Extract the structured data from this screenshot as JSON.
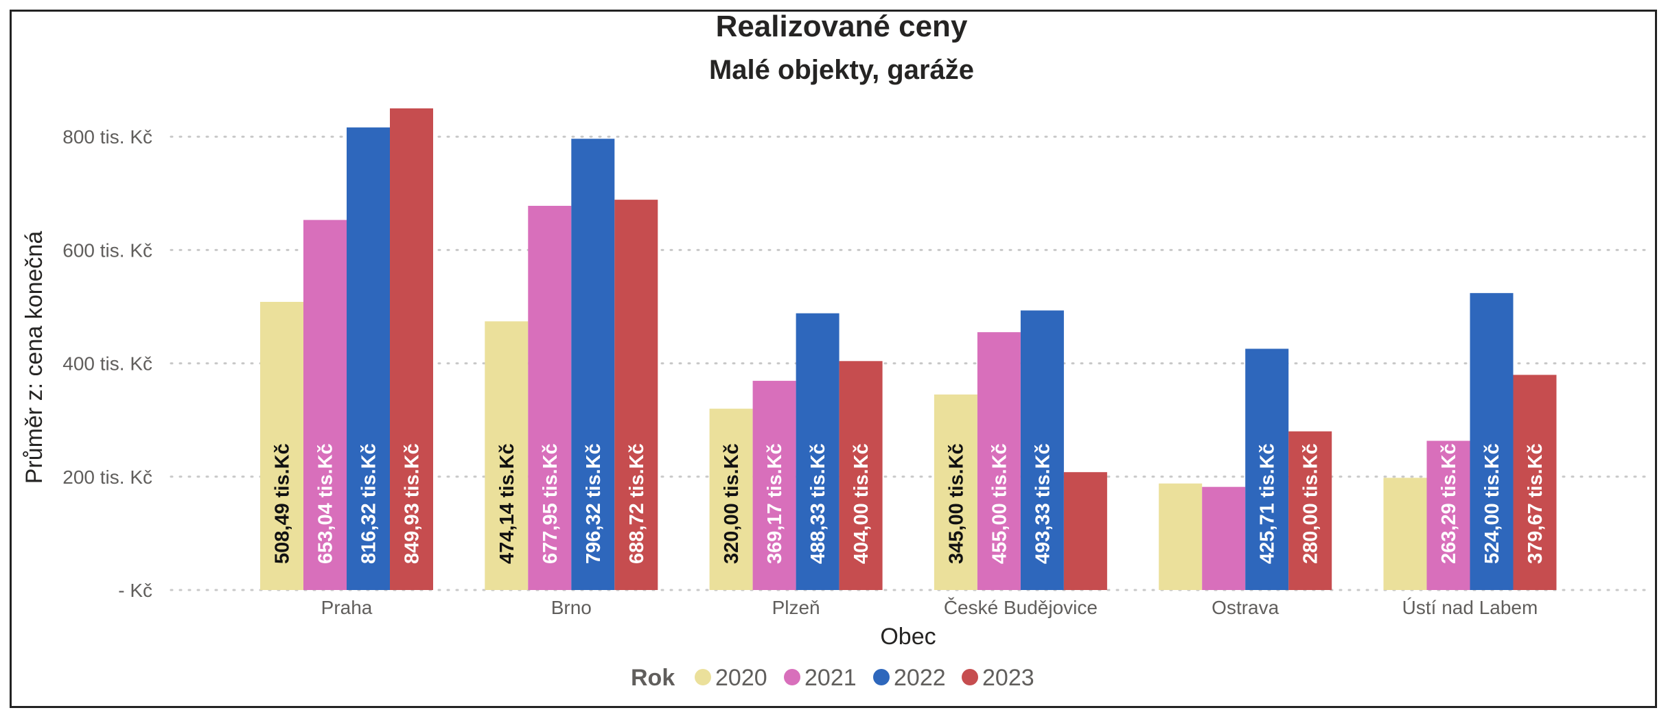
{
  "chart_data": {
    "type": "bar",
    "title": "Realizované ceny",
    "subtitle": "Malé objekty, garáže",
    "xlabel": "Obec",
    "ylabel": "Průměr z: cena konečná",
    "ylim": [
      0,
      850
    ],
    "yticks": [
      {
        "value": 0,
        "label": "- Kč"
      },
      {
        "value": 200,
        "label": "200 tis. Kč"
      },
      {
        "value": 400,
        "label": "400 tis. Kč"
      },
      {
        "value": 600,
        "label": "600 tis. Kč"
      },
      {
        "value": 800,
        "label": "800 tis. Kč"
      }
    ],
    "grid": "horizontal dotted",
    "legend": {
      "title": "Rok",
      "position": "bottom-center"
    },
    "categories": [
      "Praha",
      "Brno",
      "Plzeň",
      "České Budějovice",
      "Ostrava",
      "Ústí nad Labem"
    ],
    "series": [
      {
        "name": "2020",
        "color": "#ebe09b",
        "label_color": "#111111",
        "values": [
          508.49,
          474.14,
          320.0,
          345.0,
          188,
          198
        ],
        "labels": [
          "508,49 tis.Kč",
          "474,14 tis.Kč",
          "320,00 tis.Kč",
          "345,00 tis.Kč",
          "",
          ""
        ]
      },
      {
        "name": "2021",
        "color": "#d86fbb",
        "label_color": "#ffffff",
        "values": [
          653.04,
          677.95,
          369.17,
          455.0,
          182,
          263.29
        ],
        "labels": [
          "653,04 tis.Kč",
          "677,95 tis.Kč",
          "369,17 tis.Kč",
          "455,00 tis.Kč",
          "",
          "263,29 tis.Kč"
        ]
      },
      {
        "name": "2022",
        "color": "#2e67bc",
        "label_color": "#ffffff",
        "values": [
          816.32,
          796.32,
          488.33,
          493.33,
          425.71,
          524.0
        ],
        "labels": [
          "816,32 tis.Kč",
          "796,32 tis.Kč",
          "488,33 tis.Kč",
          "493,33 tis.Kč",
          "425,71 tis.Kč",
          "524,00 tis.Kč"
        ]
      },
      {
        "name": "2023",
        "color": "#c64d4f",
        "label_color": "#ffffff",
        "values": [
          849.93,
          688.72,
          404.0,
          208,
          280.0,
          379.67
        ],
        "labels": [
          "849,93 tis.Kč",
          "688,72 tis.Kč",
          "404,00 tis.Kč",
          "",
          "280,00 tis.Kč",
          "379,67 tis.Kč"
        ]
      }
    ]
  }
}
